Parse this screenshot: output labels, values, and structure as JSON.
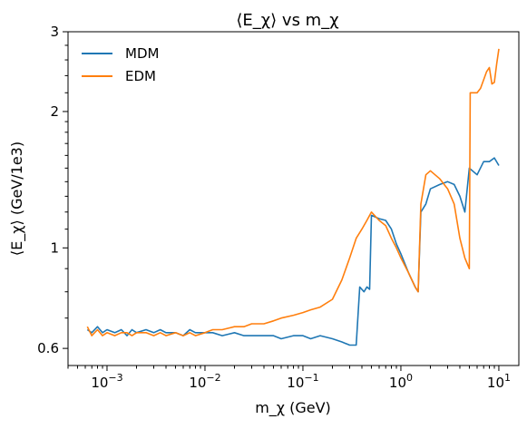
{
  "chart_data": {
    "type": "line",
    "title": "⟨E_χ⟩ vs m_χ",
    "xlabel": "m_χ (GeV)",
    "ylabel": "⟨E_χ⟩ (GeV/1e3)",
    "x_scale": "log",
    "y_scale": "log",
    "xlim": [
      0.0004,
      16
    ],
    "ylim": [
      0.55,
      3.0
    ],
    "x_ticks": [
      {
        "value": 0.001,
        "base": "10",
        "exp": "−3"
      },
      {
        "value": 0.01,
        "base": "10",
        "exp": "−2"
      },
      {
        "value": 0.1,
        "base": "10",
        "exp": "−1"
      },
      {
        "value": 1,
        "base": "10",
        "exp": "0"
      },
      {
        "value": 10,
        "base": "10",
        "exp": "1"
      }
    ],
    "y_ticks": [
      {
        "value": 0.6,
        "label": "0.6"
      },
      {
        "value": 1,
        "label": "1"
      },
      {
        "value": 2,
        "label": "2"
      },
      {
        "value": 3,
        "label": "3"
      }
    ],
    "grid": false,
    "legend_position": "top-left",
    "series": [
      {
        "name": "MDM",
        "color": "#1f77b4",
        "points": [
          [
            0.00063,
            0.66
          ],
          [
            0.0007,
            0.65
          ],
          [
            0.0008,
            0.67
          ],
          [
            0.0009,
            0.65
          ],
          [
            0.001,
            0.66
          ],
          [
            0.0012,
            0.65
          ],
          [
            0.0014,
            0.66
          ],
          [
            0.0016,
            0.64
          ],
          [
            0.0018,
            0.66
          ],
          [
            0.002,
            0.65
          ],
          [
            0.0025,
            0.66
          ],
          [
            0.003,
            0.65
          ],
          [
            0.0035,
            0.66
          ],
          [
            0.004,
            0.65
          ],
          [
            0.005,
            0.65
          ],
          [
            0.006,
            0.64
          ],
          [
            0.007,
            0.66
          ],
          [
            0.008,
            0.65
          ],
          [
            0.01,
            0.65
          ],
          [
            0.012,
            0.65
          ],
          [
            0.015,
            0.64
          ],
          [
            0.02,
            0.65
          ],
          [
            0.025,
            0.64
          ],
          [
            0.03,
            0.64
          ],
          [
            0.04,
            0.64
          ],
          [
            0.05,
            0.64
          ],
          [
            0.06,
            0.63
          ],
          [
            0.08,
            0.64
          ],
          [
            0.1,
            0.64
          ],
          [
            0.12,
            0.63
          ],
          [
            0.15,
            0.64
          ],
          [
            0.2,
            0.63
          ],
          [
            0.25,
            0.62
          ],
          [
            0.3,
            0.61
          ],
          [
            0.35,
            0.61
          ],
          [
            0.38,
            0.82
          ],
          [
            0.42,
            0.8
          ],
          [
            0.45,
            0.82
          ],
          [
            0.48,
            0.81
          ],
          [
            0.5,
            1.18
          ],
          [
            0.6,
            1.16
          ],
          [
            0.7,
            1.15
          ],
          [
            0.8,
            1.1
          ],
          [
            0.9,
            1.02
          ],
          [
            1.0,
            0.97
          ],
          [
            1.2,
            0.88
          ],
          [
            1.4,
            0.82
          ],
          [
            1.5,
            0.8
          ],
          [
            1.6,
            1.2
          ],
          [
            1.8,
            1.25
          ],
          [
            2.0,
            1.35
          ],
          [
            2.5,
            1.38
          ],
          [
            3.0,
            1.4
          ],
          [
            3.5,
            1.38
          ],
          [
            4.0,
            1.3
          ],
          [
            4.5,
            1.2
          ],
          [
            5.0,
            1.5
          ],
          [
            6.0,
            1.45
          ],
          [
            7.0,
            1.55
          ],
          [
            8.0,
            1.55
          ],
          [
            9.0,
            1.58
          ],
          [
            10.0,
            1.52
          ]
        ]
      },
      {
        "name": "EDM",
        "color": "#ff7f0e",
        "points": [
          [
            0.00063,
            0.67
          ],
          [
            0.0007,
            0.64
          ],
          [
            0.0008,
            0.66
          ],
          [
            0.0009,
            0.64
          ],
          [
            0.001,
            0.65
          ],
          [
            0.0012,
            0.64
          ],
          [
            0.0014,
            0.65
          ],
          [
            0.0016,
            0.65
          ],
          [
            0.0018,
            0.64
          ],
          [
            0.002,
            0.65
          ],
          [
            0.0025,
            0.65
          ],
          [
            0.003,
            0.64
          ],
          [
            0.0035,
            0.65
          ],
          [
            0.004,
            0.64
          ],
          [
            0.005,
            0.65
          ],
          [
            0.006,
            0.64
          ],
          [
            0.007,
            0.65
          ],
          [
            0.008,
            0.64
          ],
          [
            0.01,
            0.65
          ],
          [
            0.012,
            0.66
          ],
          [
            0.015,
            0.66
          ],
          [
            0.02,
            0.67
          ],
          [
            0.025,
            0.67
          ],
          [
            0.03,
            0.68
          ],
          [
            0.04,
            0.68
          ],
          [
            0.05,
            0.69
          ],
          [
            0.06,
            0.7
          ],
          [
            0.08,
            0.71
          ],
          [
            0.1,
            0.72
          ],
          [
            0.12,
            0.73
          ],
          [
            0.15,
            0.74
          ],
          [
            0.2,
            0.77
          ],
          [
            0.25,
            0.85
          ],
          [
            0.3,
            0.95
          ],
          [
            0.35,
            1.05
          ],
          [
            0.4,
            1.1
          ],
          [
            0.45,
            1.15
          ],
          [
            0.5,
            1.2
          ],
          [
            0.6,
            1.15
          ],
          [
            0.7,
            1.12
          ],
          [
            0.8,
            1.05
          ],
          [
            0.9,
            1.0
          ],
          [
            1.0,
            0.95
          ],
          [
            1.2,
            0.88
          ],
          [
            1.4,
            0.82
          ],
          [
            1.5,
            0.8
          ],
          [
            1.6,
            1.25
          ],
          [
            1.8,
            1.45
          ],
          [
            2.0,
            1.48
          ],
          [
            2.5,
            1.42
          ],
          [
            3.0,
            1.35
          ],
          [
            3.5,
            1.25
          ],
          [
            4.0,
            1.05
          ],
          [
            4.5,
            0.95
          ],
          [
            5.0,
            0.9
          ],
          [
            5.1,
            2.2
          ],
          [
            6.0,
            2.2
          ],
          [
            6.5,
            2.25
          ],
          [
            7.0,
            2.35
          ],
          [
            7.5,
            2.45
          ],
          [
            8.0,
            2.5
          ],
          [
            8.5,
            2.3
          ],
          [
            9.0,
            2.32
          ],
          [
            9.5,
            2.55
          ],
          [
            10.0,
            2.75
          ]
        ]
      }
    ]
  }
}
